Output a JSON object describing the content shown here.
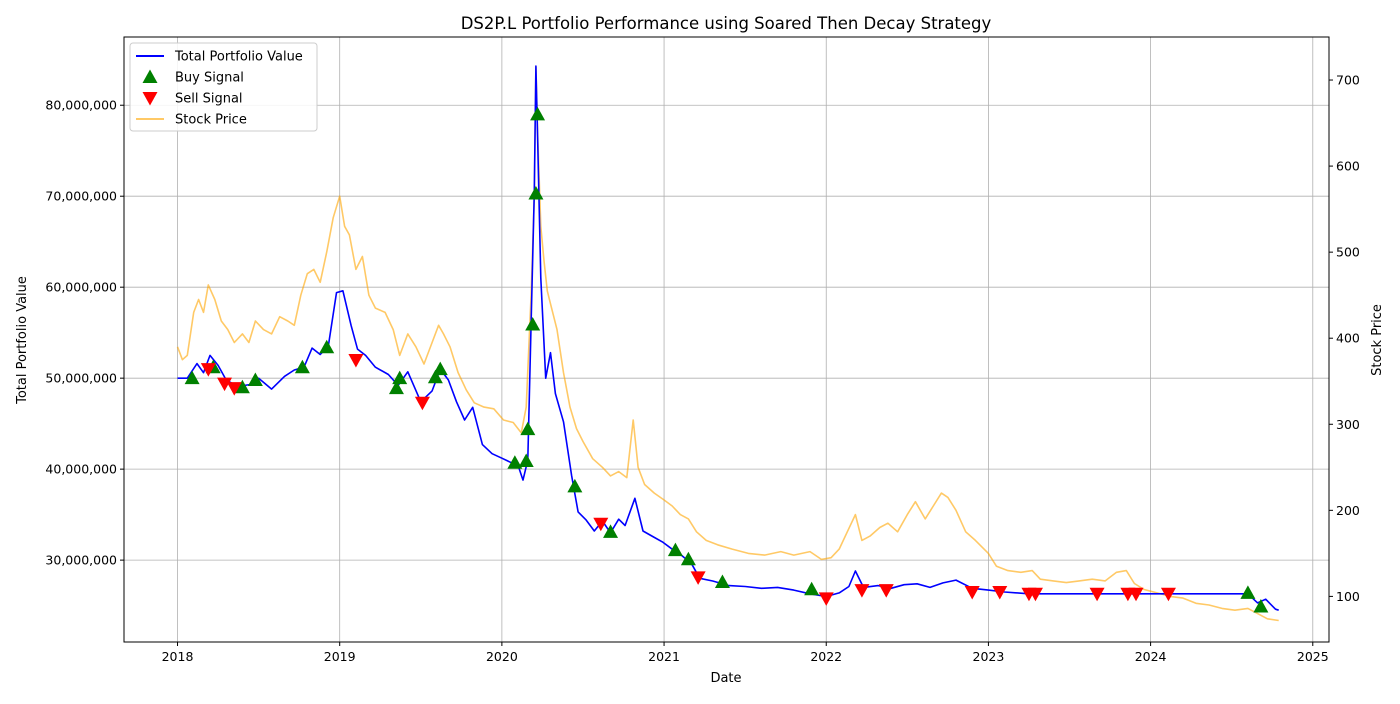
{
  "chart_data": {
    "type": "line",
    "title": "DS2P.L Portfolio Performance using Soared Then Decay Strategy",
    "xlabel": "Date",
    "ylabel": "Total Portfolio Value",
    "y2label": "Stock Price",
    "xlim": [
      2017.67,
      2025.1
    ],
    "ylim": [
      21000000,
      87500000
    ],
    "y2lim": [
      47,
      750
    ],
    "x_ticks": [
      2018,
      2019,
      2020,
      2021,
      2022,
      2023,
      2024,
      2025
    ],
    "x_tick_labels": [
      "2018",
      "2019",
      "2020",
      "2021",
      "2022",
      "2023",
      "2024",
      "2025"
    ],
    "y_ticks": [
      30000000,
      40000000,
      50000000,
      60000000,
      70000000,
      80000000
    ],
    "y_tick_labels": [
      "30,000,000",
      "40,000,000",
      "50,000,000",
      "60,000,000",
      "70,000,000",
      "80,000,000"
    ],
    "y2_ticks": [
      100,
      200,
      300,
      400,
      500,
      600,
      700
    ],
    "y2_tick_labels": [
      "100",
      "200",
      "300",
      "400",
      "500",
      "600",
      "700"
    ],
    "grid": true,
    "legend_position": "top-left",
    "legend": [
      {
        "label": "Total Portfolio Value",
        "kind": "line",
        "color": "#0000ff"
      },
      {
        "label": "Buy Signal",
        "kind": "up-triangle",
        "color": "#008000"
      },
      {
        "label": "Sell Signal",
        "kind": "down-triangle",
        "color": "#ff0000"
      },
      {
        "label": "Stock Price",
        "kind": "line",
        "color": "#ffa500"
      }
    ],
    "series": [
      {
        "name": "Total Portfolio Value",
        "axis": "left",
        "color": "#0000ff",
        "points": [
          [
            2018.0,
            50000000
          ],
          [
            2018.06,
            50000000
          ],
          [
            2018.12,
            51600000
          ],
          [
            2018.16,
            50600000
          ],
          [
            2018.2,
            52500000
          ],
          [
            2018.25,
            51400000
          ],
          [
            2018.3,
            49800000
          ],
          [
            2018.37,
            49100000
          ],
          [
            2018.45,
            49300000
          ],
          [
            2018.5,
            50000000
          ],
          [
            2018.58,
            48800000
          ],
          [
            2018.66,
            50200000
          ],
          [
            2018.72,
            50900000
          ],
          [
            2018.78,
            51200000
          ],
          [
            2018.83,
            53300000
          ],
          [
            2018.88,
            52600000
          ],
          [
            2018.93,
            53500000
          ],
          [
            2018.98,
            59400000
          ],
          [
            2019.02,
            59600000
          ],
          [
            2019.07,
            55800000
          ],
          [
            2019.11,
            53200000
          ],
          [
            2019.16,
            52500000
          ],
          [
            2019.22,
            51200000
          ],
          [
            2019.3,
            50400000
          ],
          [
            2019.36,
            49200000
          ],
          [
            2019.42,
            50700000
          ],
          [
            2019.5,
            47400000
          ],
          [
            2019.57,
            48600000
          ],
          [
            2019.62,
            51000000
          ],
          [
            2019.67,
            49800000
          ],
          [
            2019.72,
            47400000
          ],
          [
            2019.77,
            45400000
          ],
          [
            2019.82,
            46800000
          ],
          [
            2019.88,
            42700000
          ],
          [
            2019.94,
            41700000
          ],
          [
            2020.0,
            41200000
          ],
          [
            2020.06,
            40700000
          ],
          [
            2020.1,
            40400000
          ],
          [
            2020.13,
            38800000
          ],
          [
            2020.16,
            41000000
          ],
          [
            2020.18,
            56000000
          ],
          [
            2020.2,
            70500000
          ],
          [
            2020.21,
            84300000
          ],
          [
            2020.22,
            76500000
          ],
          [
            2020.24,
            61000000
          ],
          [
            2020.27,
            50000000
          ],
          [
            2020.3,
            52800000
          ],
          [
            2020.33,
            48300000
          ],
          [
            2020.38,
            45200000
          ],
          [
            2020.43,
            39300000
          ],
          [
            2020.47,
            35300000
          ],
          [
            2020.52,
            34400000
          ],
          [
            2020.57,
            33200000
          ],
          [
            2020.62,
            34300000
          ],
          [
            2020.67,
            33000000
          ],
          [
            2020.72,
            34500000
          ],
          [
            2020.76,
            33800000
          ],
          [
            2020.82,
            36800000
          ],
          [
            2020.87,
            33200000
          ],
          [
            2020.93,
            32600000
          ],
          [
            2020.99,
            32000000
          ],
          [
            2021.05,
            31200000
          ],
          [
            2021.11,
            30500000
          ],
          [
            2021.17,
            29600000
          ],
          [
            2021.22,
            28000000
          ],
          [
            2021.3,
            27700000
          ],
          [
            2021.4,
            27200000
          ],
          [
            2021.5,
            27100000
          ],
          [
            2021.6,
            26900000
          ],
          [
            2021.7,
            27000000
          ],
          [
            2021.8,
            26700000
          ],
          [
            2021.9,
            26300000
          ],
          [
            2022.0,
            26000000
          ],
          [
            2022.08,
            26400000
          ],
          [
            2022.14,
            27100000
          ],
          [
            2022.18,
            28800000
          ],
          [
            2022.23,
            27000000
          ],
          [
            2022.32,
            27200000
          ],
          [
            2022.4,
            26900000
          ],
          [
            2022.48,
            27300000
          ],
          [
            2022.56,
            27400000
          ],
          [
            2022.64,
            27000000
          ],
          [
            2022.72,
            27500000
          ],
          [
            2022.8,
            27800000
          ],
          [
            2022.9,
            26900000
          ],
          [
            2023.0,
            26700000
          ],
          [
            2023.1,
            26500000
          ],
          [
            2023.25,
            26300000
          ],
          [
            2023.5,
            26300000
          ],
          [
            2023.8,
            26300000
          ],
          [
            2024.1,
            26300000
          ],
          [
            2024.4,
            26300000
          ],
          [
            2024.6,
            26300000
          ],
          [
            2024.66,
            25300000
          ],
          [
            2024.71,
            25700000
          ],
          [
            2024.77,
            24600000
          ],
          [
            2024.79,
            24500000
          ]
        ]
      },
      {
        "name": "Stock Price",
        "axis": "right",
        "color": "#ffa500",
        "points": [
          [
            2018.0,
            390
          ],
          [
            2018.03,
            375
          ],
          [
            2018.06,
            380
          ],
          [
            2018.1,
            430
          ],
          [
            2018.13,
            445
          ],
          [
            2018.16,
            430
          ],
          [
            2018.19,
            462
          ],
          [
            2018.23,
            445
          ],
          [
            2018.27,
            420
          ],
          [
            2018.31,
            410
          ],
          [
            2018.35,
            395
          ],
          [
            2018.4,
            405
          ],
          [
            2018.44,
            395
          ],
          [
            2018.48,
            420
          ],
          [
            2018.53,
            410
          ],
          [
            2018.58,
            405
          ],
          [
            2018.63,
            425
          ],
          [
            2018.68,
            420
          ],
          [
            2018.72,
            415
          ],
          [
            2018.76,
            450
          ],
          [
            2018.8,
            475
          ],
          [
            2018.84,
            480
          ],
          [
            2018.88,
            465
          ],
          [
            2018.92,
            500
          ],
          [
            2018.96,
            540
          ],
          [
            2019.0,
            565
          ],
          [
            2019.03,
            530
          ],
          [
            2019.06,
            520
          ],
          [
            2019.1,
            480
          ],
          [
            2019.14,
            495
          ],
          [
            2019.18,
            450
          ],
          [
            2019.22,
            435
          ],
          [
            2019.28,
            430
          ],
          [
            2019.33,
            410
          ],
          [
            2019.37,
            380
          ],
          [
            2019.42,
            405
          ],
          [
            2019.47,
            390
          ],
          [
            2019.52,
            370
          ],
          [
            2019.57,
            395
          ],
          [
            2019.61,
            415
          ],
          [
            2019.64,
            405
          ],
          [
            2019.68,
            390
          ],
          [
            2019.73,
            360
          ],
          [
            2019.78,
            340
          ],
          [
            2019.83,
            325
          ],
          [
            2019.89,
            320
          ],
          [
            2019.95,
            318
          ],
          [
            2020.01,
            305
          ],
          [
            2020.07,
            302
          ],
          [
            2020.12,
            290
          ],
          [
            2020.15,
            320
          ],
          [
            2020.18,
            450
          ],
          [
            2020.2,
            565
          ],
          [
            2020.21,
            715
          ],
          [
            2020.22,
            640
          ],
          [
            2020.24,
            530
          ],
          [
            2020.26,
            490
          ],
          [
            2020.28,
            455
          ],
          [
            2020.3,
            440
          ],
          [
            2020.34,
            410
          ],
          [
            2020.38,
            360
          ],
          [
            2020.42,
            320
          ],
          [
            2020.46,
            295
          ],
          [
            2020.5,
            280
          ],
          [
            2020.56,
            260
          ],
          [
            2020.62,
            250
          ],
          [
            2020.67,
            240
          ],
          [
            2020.72,
            245
          ],
          [
            2020.77,
            238
          ],
          [
            2020.81,
            305
          ],
          [
            2020.84,
            250
          ],
          [
            2020.88,
            230
          ],
          [
            2020.94,
            220
          ],
          [
            2021.0,
            212
          ],
          [
            2021.05,
            205
          ],
          [
            2021.1,
            195
          ],
          [
            2021.15,
            190
          ],
          [
            2021.2,
            175
          ],
          [
            2021.26,
            165
          ],
          [
            2021.33,
            160
          ],
          [
            2021.42,
            155
          ],
          [
            2021.52,
            150
          ],
          [
            2021.62,
            148
          ],
          [
            2021.72,
            152
          ],
          [
            2021.8,
            148
          ],
          [
            2021.9,
            152
          ],
          [
            2021.97,
            143
          ],
          [
            2022.03,
            145
          ],
          [
            2022.08,
            155
          ],
          [
            2022.13,
            175
          ],
          [
            2022.18,
            195
          ],
          [
            2022.22,
            165
          ],
          [
            2022.27,
            170
          ],
          [
            2022.33,
            180
          ],
          [
            2022.38,
            185
          ],
          [
            2022.44,
            175
          ],
          [
            2022.5,
            195
          ],
          [
            2022.55,
            210
          ],
          [
            2022.61,
            190
          ],
          [
            2022.66,
            205
          ],
          [
            2022.71,
            220
          ],
          [
            2022.75,
            215
          ],
          [
            2022.8,
            200
          ],
          [
            2022.86,
            175
          ],
          [
            2022.92,
            165
          ],
          [
            2023.0,
            150
          ],
          [
            2023.05,
            135
          ],
          [
            2023.12,
            130
          ],
          [
            2023.2,
            128
          ],
          [
            2023.27,
            130
          ],
          [
            2023.32,
            120
          ],
          [
            2023.4,
            118
          ],
          [
            2023.48,
            116
          ],
          [
            2023.56,
            118
          ],
          [
            2023.64,
            120
          ],
          [
            2023.72,
            118
          ],
          [
            2023.79,
            128
          ],
          [
            2023.85,
            130
          ],
          [
            2023.9,
            115
          ],
          [
            2023.96,
            108
          ],
          [
            2024.04,
            104
          ],
          [
            2024.12,
            100
          ],
          [
            2024.2,
            98
          ],
          [
            2024.28,
            92
          ],
          [
            2024.36,
            90
          ],
          [
            2024.44,
            86
          ],
          [
            2024.52,
            84
          ],
          [
            2024.6,
            86
          ],
          [
            2024.66,
            80
          ],
          [
            2024.72,
            74
          ],
          [
            2024.79,
            72
          ]
        ]
      }
    ],
    "buy_signals": [
      [
        2018.09,
        50000000
      ],
      [
        2018.22,
        51200000
      ],
      [
        2018.4,
        49000000
      ],
      [
        2018.48,
        49800000
      ],
      [
        2018.77,
        51200000
      ],
      [
        2018.92,
        53400000
      ],
      [
        2019.35,
        48900000
      ],
      [
        2019.37,
        50000000
      ],
      [
        2019.59,
        50100000
      ],
      [
        2019.62,
        51000000
      ],
      [
        2020.08,
        40700000
      ],
      [
        2020.15,
        40900000
      ],
      [
        2020.16,
        44400000
      ],
      [
        2020.19,
        55900000
      ],
      [
        2020.21,
        70300000
      ],
      [
        2020.22,
        79000000
      ],
      [
        2020.45,
        38100000
      ],
      [
        2020.67,
        33100000
      ],
      [
        2021.07,
        31100000
      ],
      [
        2021.15,
        30100000
      ],
      [
        2021.36,
        27600000
      ],
      [
        2021.91,
        26800000
      ],
      [
        2024.6,
        26400000
      ],
      [
        2024.68,
        24900000
      ]
    ],
    "sell_signals": [
      [
        2018.19,
        51000000
      ],
      [
        2018.29,
        49400000
      ],
      [
        2018.35,
        48900000
      ],
      [
        2019.1,
        52000000
      ],
      [
        2019.51,
        47300000
      ],
      [
        2020.61,
        34000000
      ],
      [
        2021.21,
        28100000
      ],
      [
        2022.0,
        25800000
      ],
      [
        2022.22,
        26700000
      ],
      [
        2022.37,
        26700000
      ],
      [
        2022.9,
        26500000
      ],
      [
        2023.07,
        26500000
      ],
      [
        2023.25,
        26300000
      ],
      [
        2023.29,
        26300000
      ],
      [
        2023.67,
        26300000
      ],
      [
        2023.86,
        26300000
      ],
      [
        2023.91,
        26300000
      ],
      [
        2024.11,
        26300000
      ]
    ]
  }
}
